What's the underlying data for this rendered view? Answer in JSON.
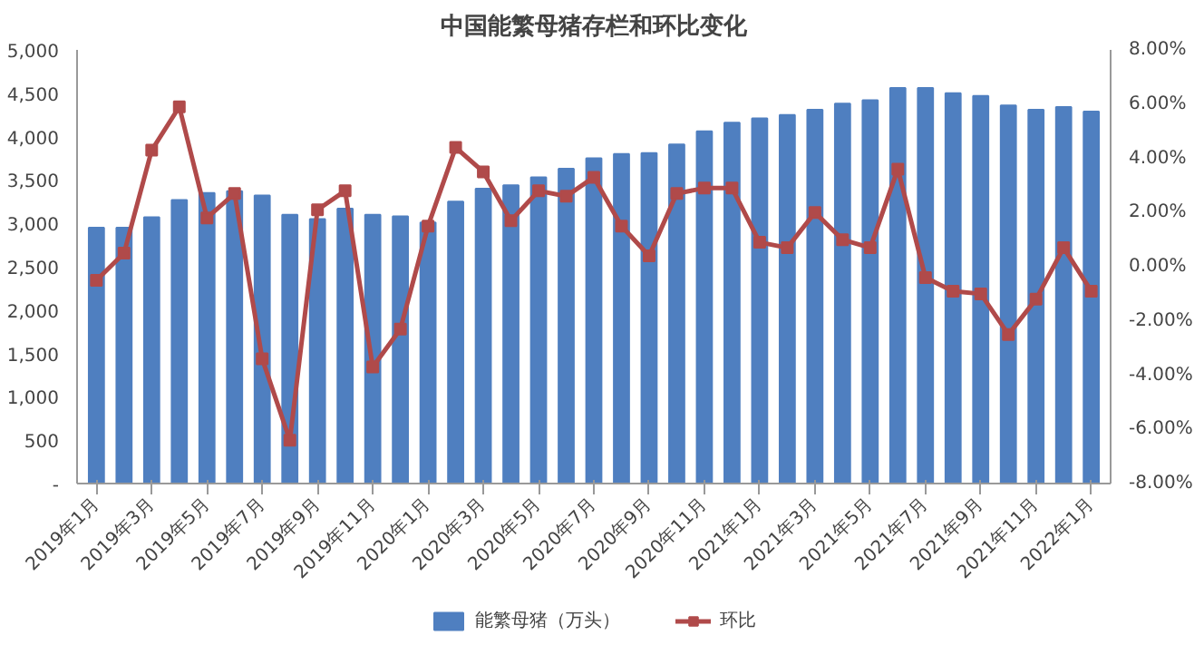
{
  "chart_data": {
    "type": "bar",
    "title": "中国能繁母猪存栏和环比变化",
    "categories": [
      "2019年1月",
      null,
      "2019年3月",
      null,
      "2019年5月",
      null,
      "2019年7月",
      null,
      "2019年9月",
      null,
      "2019年11月",
      null,
      "2020年1月",
      null,
      "2020年3月",
      null,
      "2020年5月",
      null,
      "2020年7月",
      null,
      "2020年9月",
      null,
      "2020年11月",
      null,
      "2021年1月",
      null,
      "2021年3月",
      null,
      "2021年5月",
      null,
      "2021年7月",
      null,
      "2021年9月",
      null,
      "2021年11月",
      null,
      "2022年1月"
    ],
    "series": [
      {
        "name": "能繁母猪（万头）",
        "type": "bar",
        "color": "#4f7fc0",
        "values": [
          2950,
          2950,
          3070,
          3270,
          3350,
          3370,
          3320,
          3100,
          3050,
          3170,
          3100,
          3080,
          3010,
          3250,
          3400,
          3440,
          3530,
          3630,
          3750,
          3800,
          3810,
          3910,
          4060,
          4160,
          4210,
          4250,
          4310,
          4380,
          4420,
          4560,
          4560,
          4500,
          4470,
          4360,
          4310,
          4340,
          4290
        ]
      },
      {
        "name": "环比",
        "type": "line",
        "axis": "y2",
        "color": "#b04a4a",
        "marker": "square",
        "values": [
          -0.5,
          0.5,
          4.3,
          5.9,
          1.8,
          2.7,
          -3.4,
          -6.4,
          2.1,
          2.8,
          -3.7,
          -2.3,
          1.5,
          4.4,
          3.5,
          1.7,
          2.8,
          2.6,
          3.3,
          1.5,
          0.4,
          2.7,
          2.9,
          2.9,
          0.9,
          0.7,
          2.0,
          1.0,
          0.7,
          3.6,
          -0.4,
          -0.9,
          -1.0,
          -2.5,
          -1.2,
          0.7,
          -0.9
        ]
      }
    ],
    "ylim": [
      0,
      5000
    ],
    "yticks": [
      {
        "value": 0,
        "label": "-"
      },
      {
        "value": 500,
        "label": "500"
      },
      {
        "value": 1000,
        "label": "1,000"
      },
      {
        "value": 1500,
        "label": "1,500"
      },
      {
        "value": 2000,
        "label": "2,000"
      },
      {
        "value": 2500,
        "label": "2,500"
      },
      {
        "value": 3000,
        "label": "3,000"
      },
      {
        "value": 3500,
        "label": "3,500"
      },
      {
        "value": 4000,
        "label": "4,000"
      },
      {
        "value": 4500,
        "label": "4,500"
      },
      {
        "value": 5000,
        "label": "5,000"
      }
    ],
    "y2lim": [
      -8,
      8
    ],
    "y2ticks": [
      {
        "value": -8,
        "label": "-8.00%"
      },
      {
        "value": -6,
        "label": "-6.00%"
      },
      {
        "value": -4,
        "label": "-4.00%"
      },
      {
        "value": -2,
        "label": "-2.00%"
      },
      {
        "value": 0,
        "label": "0.00%"
      },
      {
        "value": 2,
        "label": "2.00%"
      },
      {
        "value": 4,
        "label": "4.00%"
      },
      {
        "value": 6,
        "label": "6.00%"
      },
      {
        "value": 8,
        "label": "8.00%"
      }
    ],
    "grid": false,
    "legend": "bottom"
  }
}
